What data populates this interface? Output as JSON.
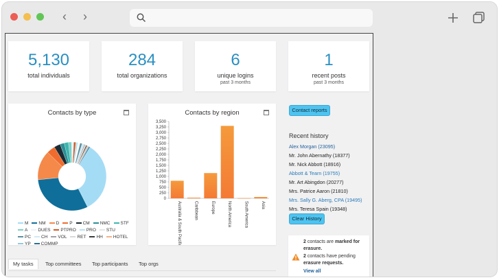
{
  "stats": [
    {
      "value": "5,130",
      "label": "total individuals",
      "sub": ""
    },
    {
      "value": "284",
      "label": "total organizations",
      "sub": ""
    },
    {
      "value": "6",
      "label": "unique logins",
      "sub": "past 3 months"
    },
    {
      "value": "1",
      "label": "recent posts",
      "sub": "past 3 months"
    }
  ],
  "panels": {
    "type_title": "Contacts by type",
    "region_title": "Contacts by region"
  },
  "chart_data": [
    {
      "type": "pie",
      "title": "Contacts by type",
      "categories": [
        "M",
        "NM",
        "D",
        "P",
        "CM",
        "NMC",
        "STF",
        "A",
        "DUES",
        "PTPRO",
        "PRO",
        "STU",
        "PC",
        "CH",
        "VOL",
        "RET",
        "HH",
        "HOTEL",
        "YP",
        "COMMP"
      ],
      "values": [
        34,
        31,
        14,
        4,
        3,
        2,
        2,
        1.5,
        1,
        1,
        1,
        1,
        1,
        1,
        0.5,
        0.5,
        0.5,
        0.5,
        0.5,
        0.5
      ],
      "colors": [
        "#a5dcf5",
        "#0f6e9a",
        "#f4894a",
        "#ef6c2e",
        "#1c2b33",
        "#2a8f95",
        "#3cb6ae",
        "#7ad0c8",
        "#e8f4fb",
        "#d05a23",
        "#b6e3f4",
        "#ffffff",
        "#5b8fa0",
        "#cfeaf4",
        "#a0a0a0",
        "#d8d8d8",
        "#3c3c3c",
        "#f4b08a",
        "#93c9e0",
        "#2a6f8f"
      ],
      "legend": [
        "M",
        "NM",
        "D",
        "P",
        "CM",
        "NMC",
        "STF",
        "A",
        "DUES",
        "PTPRO",
        "PRO",
        "STU",
        "PC",
        "CH",
        "VOL",
        "RET",
        "HH",
        "HOTEL",
        "YP",
        "COMMP"
      ]
    },
    {
      "type": "bar",
      "title": "Contacts by region",
      "categories": [
        "Australia & South Pacific",
        "Caribbean",
        "Europe",
        "North America",
        "South America",
        "Asia"
      ],
      "values": [
        800,
        30,
        1150,
        3300,
        10,
        60
      ],
      "ylim": [
        0,
        3500
      ],
      "yticks": [
        "0",
        "250",
        "500",
        "750",
        "1,000",
        "1,250",
        "1,500",
        "1,750",
        "2,000",
        "2,250",
        "2,500",
        "2,750",
        "3,000",
        "3,250",
        "3,500"
      ],
      "xlabels": [
        "Australia & South Pacific",
        "Caribbean",
        "Europe",
        "North America",
        "South America",
        "Asia"
      ]
    }
  ],
  "actions": {
    "contact_reports": "Contact reports",
    "clear_history": "Clear History"
  },
  "recent": {
    "heading": "Recent history",
    "items": [
      "Alex Morgan (23095)",
      "Mr. John Abernathy (18377)",
      "Mr. Nick Abbott (18916)",
      "Abbott & Tearn (19755)",
      "Mr. Art Abingdon (20277)",
      "Mrs. Patrice Aaron (21810)",
      "Mrs. Sally G. Aberg, CPA (19495)",
      "Mrs. Teresa Spain (19348)"
    ]
  },
  "notice": {
    "line1a": "2",
    "line1b": " contacts are ",
    "line1c": "marked for erasure.",
    "line2a": "2",
    "line2b": " contacts have pending ",
    "line2c": "erasure requests.",
    "view_all": "View all"
  },
  "tabs": [
    "My tasks",
    "Top committees",
    "Top participants",
    "Top orgs"
  ]
}
